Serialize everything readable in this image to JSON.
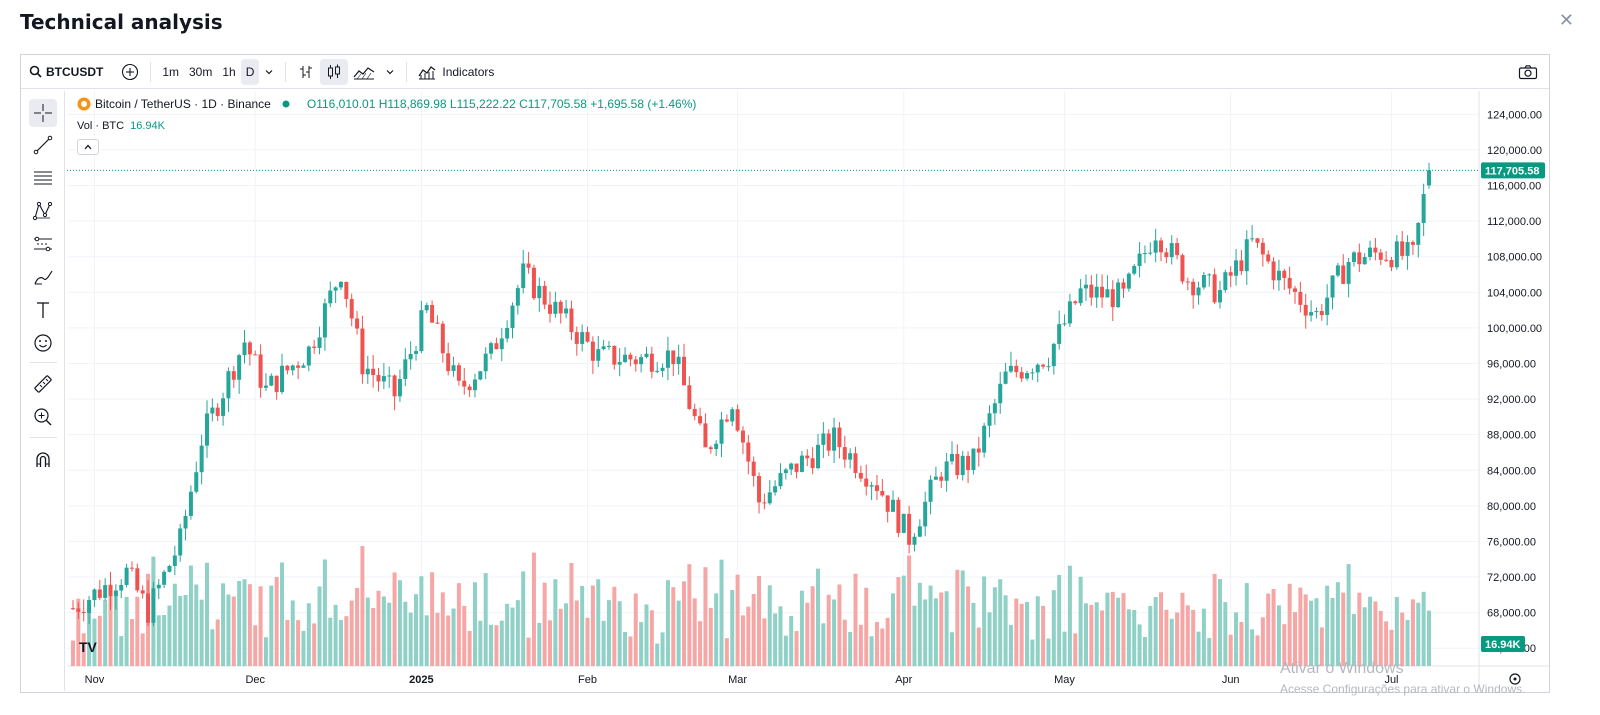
{
  "dialog": {
    "title": "Technical analysis",
    "close_icon": "close-icon"
  },
  "toolbar": {
    "symbol": "BTCUSDT",
    "intervals": [
      "1m",
      "30m",
      "1h",
      "D"
    ],
    "active_interval": "D",
    "indicators_label": "Indicators"
  },
  "legend": {
    "pair": "Bitcoin / TetherUS · 1D · Binance",
    "open_label": "O",
    "open": "116,010.01",
    "high_label": "H",
    "high": "118,869.98",
    "low_label": "L",
    "low": "115,222.22",
    "close_label": "C",
    "close": "117,705.58",
    "change": "+1,695.58 (+1.46%)",
    "vol_label": "Vol · BTC",
    "vol_value": "16.94K"
  },
  "price_badge": "117,705.58",
  "vol_badge": "16.94K",
  "watermark": {
    "line1": "Ativar o Windows",
    "line2": "Acesse Configurações para ativar o Windows."
  },
  "colors": {
    "up": "#26a69a",
    "down": "#ef5350",
    "up_vol": "#8fd0c7",
    "down_vol": "#f6a7a5",
    "badge": "#089981"
  },
  "chart_data": {
    "type": "candlestick",
    "y_ticks": [
      "124,000.00",
      "120,000.00",
      "116,000.00",
      "112,000.00",
      "108,000.00",
      "104,000.00",
      "100,000.00",
      "96,000.00",
      "92,000.00",
      "88,000.00",
      "84,000.00",
      "80,000.00",
      "76,000.00",
      "72,000.00",
      "68,000.00",
      "64,000.00"
    ],
    "ylim": [
      62000,
      125500
    ],
    "x_labels": [
      "Nov",
      "Dec",
      "2025",
      "Feb",
      "Mar",
      "Apr",
      "May",
      "Jun",
      "Jul"
    ],
    "x_label_days": [
      4,
      34,
      65,
      96,
      124,
      155,
      185,
      216,
      246
    ],
    "last_close": 117705.58,
    "key_points": [
      {
        "day": 0,
        "price": 68500
      },
      {
        "day": 10,
        "price": 72500
      },
      {
        "day": 14,
        "price": 68200
      },
      {
        "day": 20,
        "price": 76000
      },
      {
        "day": 24,
        "price": 87500
      },
      {
        "day": 32,
        "price": 98500
      },
      {
        "day": 36,
        "price": 93000
      },
      {
        "day": 44,
        "price": 97500
      },
      {
        "day": 50,
        "price": 106500
      },
      {
        "day": 54,
        "price": 96000
      },
      {
        "day": 60,
        "price": 92500
      },
      {
        "day": 66,
        "price": 102000
      },
      {
        "day": 72,
        "price": 93000
      },
      {
        "day": 78,
        "price": 97000
      },
      {
        "day": 84,
        "price": 106000
      },
      {
        "day": 90,
        "price": 102000
      },
      {
        "day": 98,
        "price": 96800
      },
      {
        "day": 106,
        "price": 96500
      },
      {
        "day": 112,
        "price": 97000
      },
      {
        "day": 118,
        "price": 86000
      },
      {
        "day": 123,
        "price": 92000
      },
      {
        "day": 128,
        "price": 80500
      },
      {
        "day": 135,
        "price": 84500
      },
      {
        "day": 142,
        "price": 87500
      },
      {
        "day": 150,
        "price": 82500
      },
      {
        "day": 156,
        "price": 76500
      },
      {
        "day": 162,
        "price": 84000
      },
      {
        "day": 168,
        "price": 85000
      },
      {
        "day": 174,
        "price": 94500
      },
      {
        "day": 182,
        "price": 97000
      },
      {
        "day": 188,
        "price": 104000
      },
      {
        "day": 196,
        "price": 103500
      },
      {
        "day": 202,
        "price": 111000
      },
      {
        "day": 208,
        "price": 105500
      },
      {
        "day": 214,
        "price": 104000
      },
      {
        "day": 220,
        "price": 109500
      },
      {
        "day": 226,
        "price": 105000
      },
      {
        "day": 232,
        "price": 101500
      },
      {
        "day": 238,
        "price": 107500
      },
      {
        "day": 244,
        "price": 108500
      },
      {
        "day": 250,
        "price": 108000
      },
      {
        "day": 253,
        "price": 117705.58
      }
    ],
    "volume_label": "Vol · BTC"
  }
}
